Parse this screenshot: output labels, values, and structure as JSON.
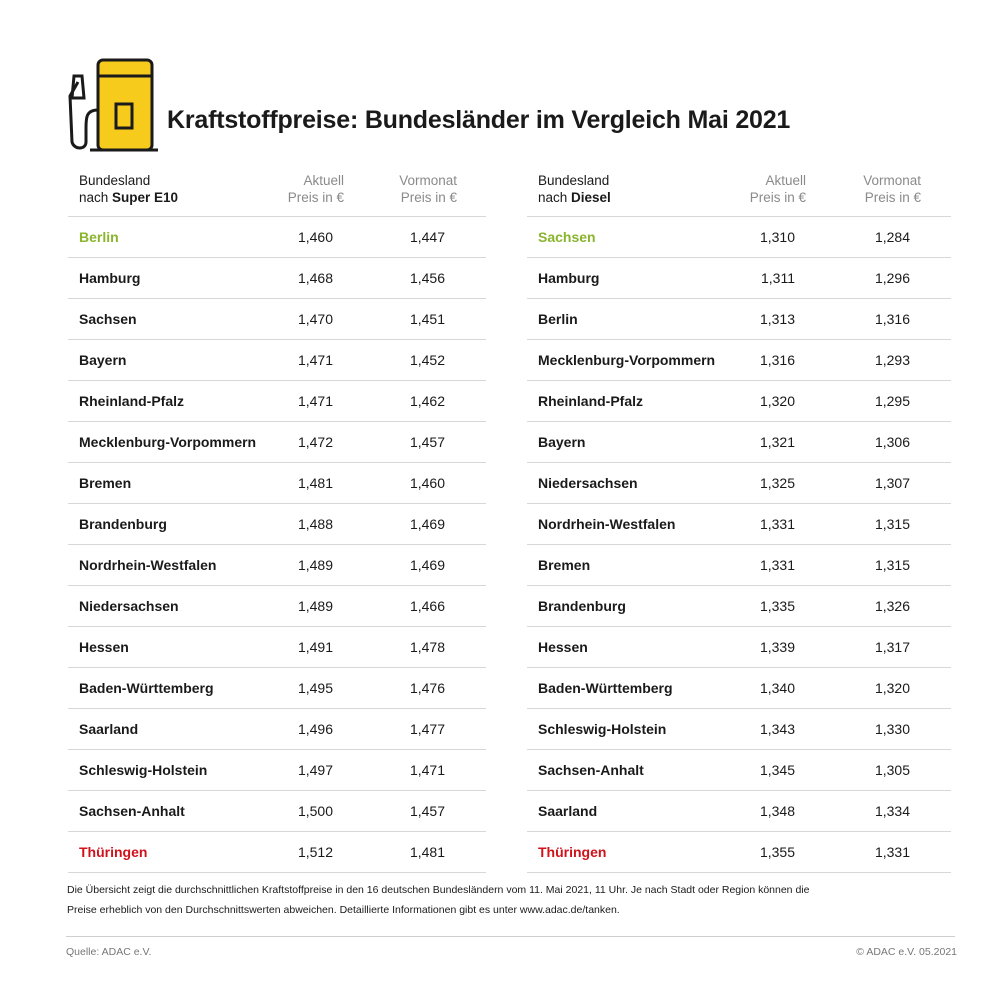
{
  "title": "Kraftstoffpreise: Bundesländer im Vergleich Mai 2021",
  "colors": {
    "accent_yellow": "#f6cb1c",
    "best": "#8ab42d",
    "worst": "#d0121b"
  },
  "icon": "fuel-pump-icon",
  "super_e10": {
    "header": {
      "col1_line1": "Bundesland",
      "col1_line2_prefix": "nach ",
      "col1_line2_bold": "Super E10",
      "col2_line1": "Aktuell",
      "col2_line2": "Preis in €",
      "col3_line1": "Vormonat",
      "col3_line2": "Preis in €"
    },
    "rows": [
      {
        "state": "Berlin",
        "current": "1,460",
        "previous": "1,447"
      },
      {
        "state": "Hamburg",
        "current": "1,468",
        "previous": "1,456"
      },
      {
        "state": "Sachsen",
        "current": "1,470",
        "previous": "1,451"
      },
      {
        "state": "Bayern",
        "current": "1,471",
        "previous": "1,452"
      },
      {
        "state": "Rheinland-Pfalz",
        "current": "1,471",
        "previous": "1,462"
      },
      {
        "state": "Mecklenburg-Vorpommern",
        "current": "1,472",
        "previous": "1,457"
      },
      {
        "state": "Bremen",
        "current": "1,481",
        "previous": "1,460"
      },
      {
        "state": "Brandenburg",
        "current": "1,488",
        "previous": "1,469"
      },
      {
        "state": "Nordrhein-Westfalen",
        "current": "1,489",
        "previous": "1,469"
      },
      {
        "state": "Niedersachsen",
        "current": "1,489",
        "previous": "1,466"
      },
      {
        "state": "Hessen",
        "current": "1,491",
        "previous": "1,478"
      },
      {
        "state": "Baden-Württemberg",
        "current": "1,495",
        "previous": "1,476"
      },
      {
        "state": "Saarland",
        "current": "1,496",
        "previous": "1,477"
      },
      {
        "state": "Schleswig-Holstein",
        "current": "1,497",
        "previous": "1,471"
      },
      {
        "state": "Sachsen-Anhalt",
        "current": "1,500",
        "previous": "1,457"
      },
      {
        "state": "Thüringen",
        "current": "1,512",
        "previous": "1,481"
      }
    ]
  },
  "diesel": {
    "header": {
      "col1_line1": "Bundesland",
      "col1_line2_prefix": "nach ",
      "col1_line2_bold": "Diesel",
      "col2_line1": "Aktuell",
      "col2_line2": "Preis in €",
      "col3_line1": "Vormonat",
      "col3_line2": "Preis in €"
    },
    "rows": [
      {
        "state": "Sachsen",
        "current": "1,310",
        "previous": "1,284"
      },
      {
        "state": "Hamburg",
        "current": "1,311",
        "previous": "1,296"
      },
      {
        "state": "Berlin",
        "current": "1,313",
        "previous": "1,316"
      },
      {
        "state": "Mecklenburg-Vorpommern",
        "current": "1,316",
        "previous": "1,293"
      },
      {
        "state": "Rheinland-Pfalz",
        "current": "1,320",
        "previous": "1,295"
      },
      {
        "state": "Bayern",
        "current": "1,321",
        "previous": "1,306"
      },
      {
        "state": "Niedersachsen",
        "current": "1,325",
        "previous": "1,307"
      },
      {
        "state": "Nordrhein-Westfalen",
        "current": "1,331",
        "previous": "1,315"
      },
      {
        "state": "Bremen",
        "current": "1,331",
        "previous": "1,315"
      },
      {
        "state": "Brandenburg",
        "current": "1,335",
        "previous": "1,326"
      },
      {
        "state": "Hessen",
        "current": "1,339",
        "previous": "1,317"
      },
      {
        "state": "Baden-Württemberg",
        "current": "1,340",
        "previous": "1,320"
      },
      {
        "state": "Schleswig-Holstein",
        "current": "1,343",
        "previous": "1,330"
      },
      {
        "state": "Sachsen-Anhalt",
        "current": "1,345",
        "previous": "1,305"
      },
      {
        "state": "Saarland",
        "current": "1,348",
        "previous": "1,334"
      },
      {
        "state": "Thüringen",
        "current": "1,355",
        "previous": "1,331"
      }
    ]
  },
  "footnote_line1": "Die Übersicht zeigt die durchschnittlichen Kraftstoffpreise in den 16 deutschen Bundesländern vom 11. Mai 2021, 11 Uhr. Je nach Stadt oder Region können die",
  "footnote_line2": "Preise erheblich von den Durchschnittswerten abweichen. Detaillierte Informationen gibt es unter www.adac.de/tanken.",
  "source": "Quelle: ADAC e.V.",
  "copyright": "© ADAC e.V. 05.2021"
}
